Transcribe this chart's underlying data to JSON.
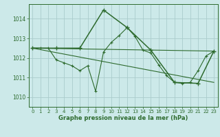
{
  "background_color": "#cce9e9",
  "grid_color": "#aacccc",
  "line_color": "#2d6a2d",
  "title": "Graphe pression niveau de la mer (hPa)",
  "xlim": [
    -0.5,
    23.5
  ],
  "ylim": [
    1009.5,
    1014.75
  ],
  "yticks": [
    1010,
    1011,
    1012,
    1013,
    1014
  ],
  "xticks": [
    0,
    1,
    2,
    3,
    4,
    5,
    6,
    7,
    8,
    9,
    10,
    11,
    12,
    13,
    14,
    15,
    16,
    17,
    18,
    19,
    20,
    21,
    22,
    23
  ],
  "series1_x": [
    0,
    1,
    2,
    3,
    4,
    5,
    6,
    7,
    8,
    9,
    10,
    11,
    12,
    13,
    14,
    15,
    16,
    17,
    18,
    19,
    20,
    21,
    22,
    23
  ],
  "series1_y": [
    1012.5,
    1012.5,
    1012.5,
    1011.9,
    1011.75,
    1011.6,
    1011.35,
    1011.6,
    1010.3,
    1012.3,
    1012.8,
    1013.15,
    1013.55,
    1013.1,
    1012.4,
    1012.25,
    1011.65,
    1011.1,
    1010.75,
    1010.7,
    1010.75,
    1011.35,
    1012.1,
    1012.35
  ],
  "series2_x": [
    0,
    3,
    6,
    9,
    12,
    15,
    18,
    21,
    23
  ],
  "series2_y": [
    1012.5,
    1012.5,
    1012.5,
    1014.45,
    1013.55,
    1012.4,
    1010.75,
    1010.7,
    1012.35
  ],
  "trend1_x": [
    0,
    23
  ],
  "trend1_y": [
    1012.5,
    1010.75
  ],
  "trend2_x": [
    0,
    23
  ],
  "trend2_y": [
    1012.5,
    1012.35
  ]
}
